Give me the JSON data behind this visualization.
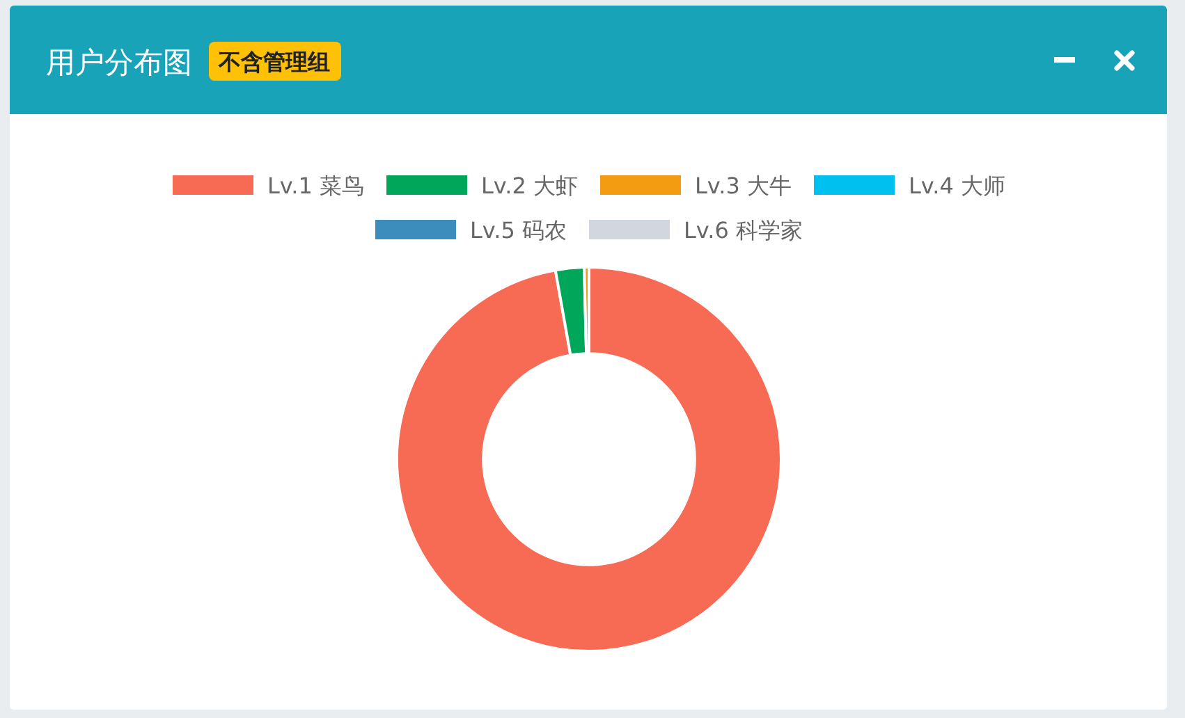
{
  "chart_data": {
    "type": "donut",
    "title": "用户分布图",
    "subtitle": "不含管理组",
    "categories": [
      "Lv.1 菜鸟",
      "Lv.2 大虾",
      "Lv.3 大牛",
      "Lv.4 大师",
      "Lv.5 码农",
      "Lv.6 科学家"
    ],
    "values": [
      97.2,
      2.4,
      0.4,
      0,
      0,
      0
    ],
    "colors": [
      "#f76b55",
      "#00a65a",
      "#f39c12",
      "#00c0ef",
      "#3c8dbc",
      "#d2d6de"
    ],
    "legend": "top"
  }
}
